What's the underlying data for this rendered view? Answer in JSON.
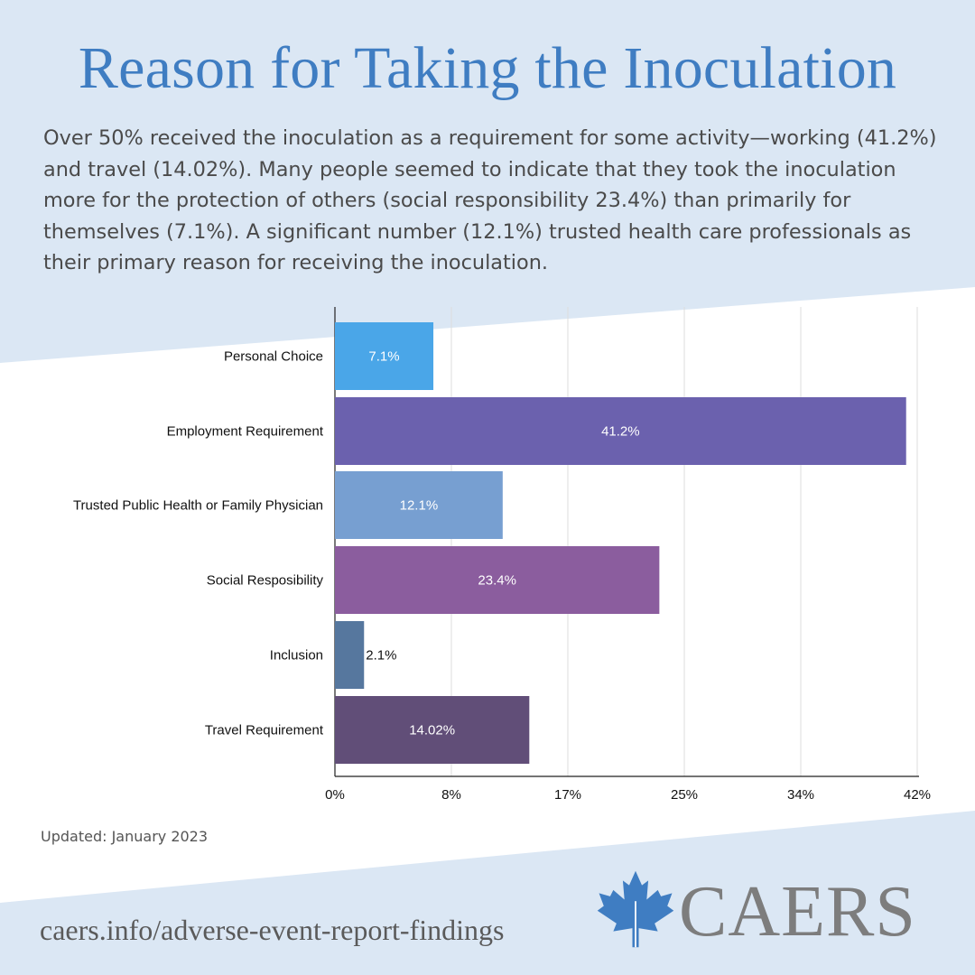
{
  "title": "Reason for Taking the Inoculation",
  "summary": "Over 50% received the inoculation as a requirement for some activity—working (41.2%) and travel (14.02%). Many people seemed to indicate that they took the inoculation more for the protection of others (social responsibility 23.4%) than primarily for themselves (7.1%). A significant number (12.1%) trusted health care professionals as their primary reason for receiving the inoculation.",
  "footer": {
    "updated": "Updated: January 2023",
    "url": "caers.info/adverse-event-report-findings",
    "brand": "CAERS",
    "logo_icon": "maple-leaf-icon"
  },
  "colors": {
    "title": "#3f7dc2",
    "background_band": "#dbe7f4"
  },
  "chart_data": {
    "type": "bar",
    "orientation": "horizontal",
    "categories": [
      "Personal Choice",
      "Employment Requirement",
      "Trusted Public Health or Family Physician",
      "Social Resposibility",
      "Inclusion",
      "Travel Requirement"
    ],
    "values": [
      7.1,
      41.2,
      12.1,
      23.4,
      2.1,
      14.02
    ],
    "data_labels": [
      "7.1%",
      "41.2%",
      "12.1%",
      "23.4%",
      "2.1%",
      "14.02%"
    ],
    "colors": [
      "#4aa6e8",
      "#6b61ae",
      "#779fd1",
      "#8b5d9e",
      "#56779e",
      "#614e78"
    ],
    "x_ticks": [
      "0%",
      "8%",
      "17%",
      "25%",
      "34%",
      "42%"
    ],
    "x_tick_values": [
      0,
      8.4,
      16.8,
      25.2,
      33.6,
      42
    ],
    "xlim": [
      0,
      42
    ],
    "grid": true,
    "legend": "none"
  }
}
